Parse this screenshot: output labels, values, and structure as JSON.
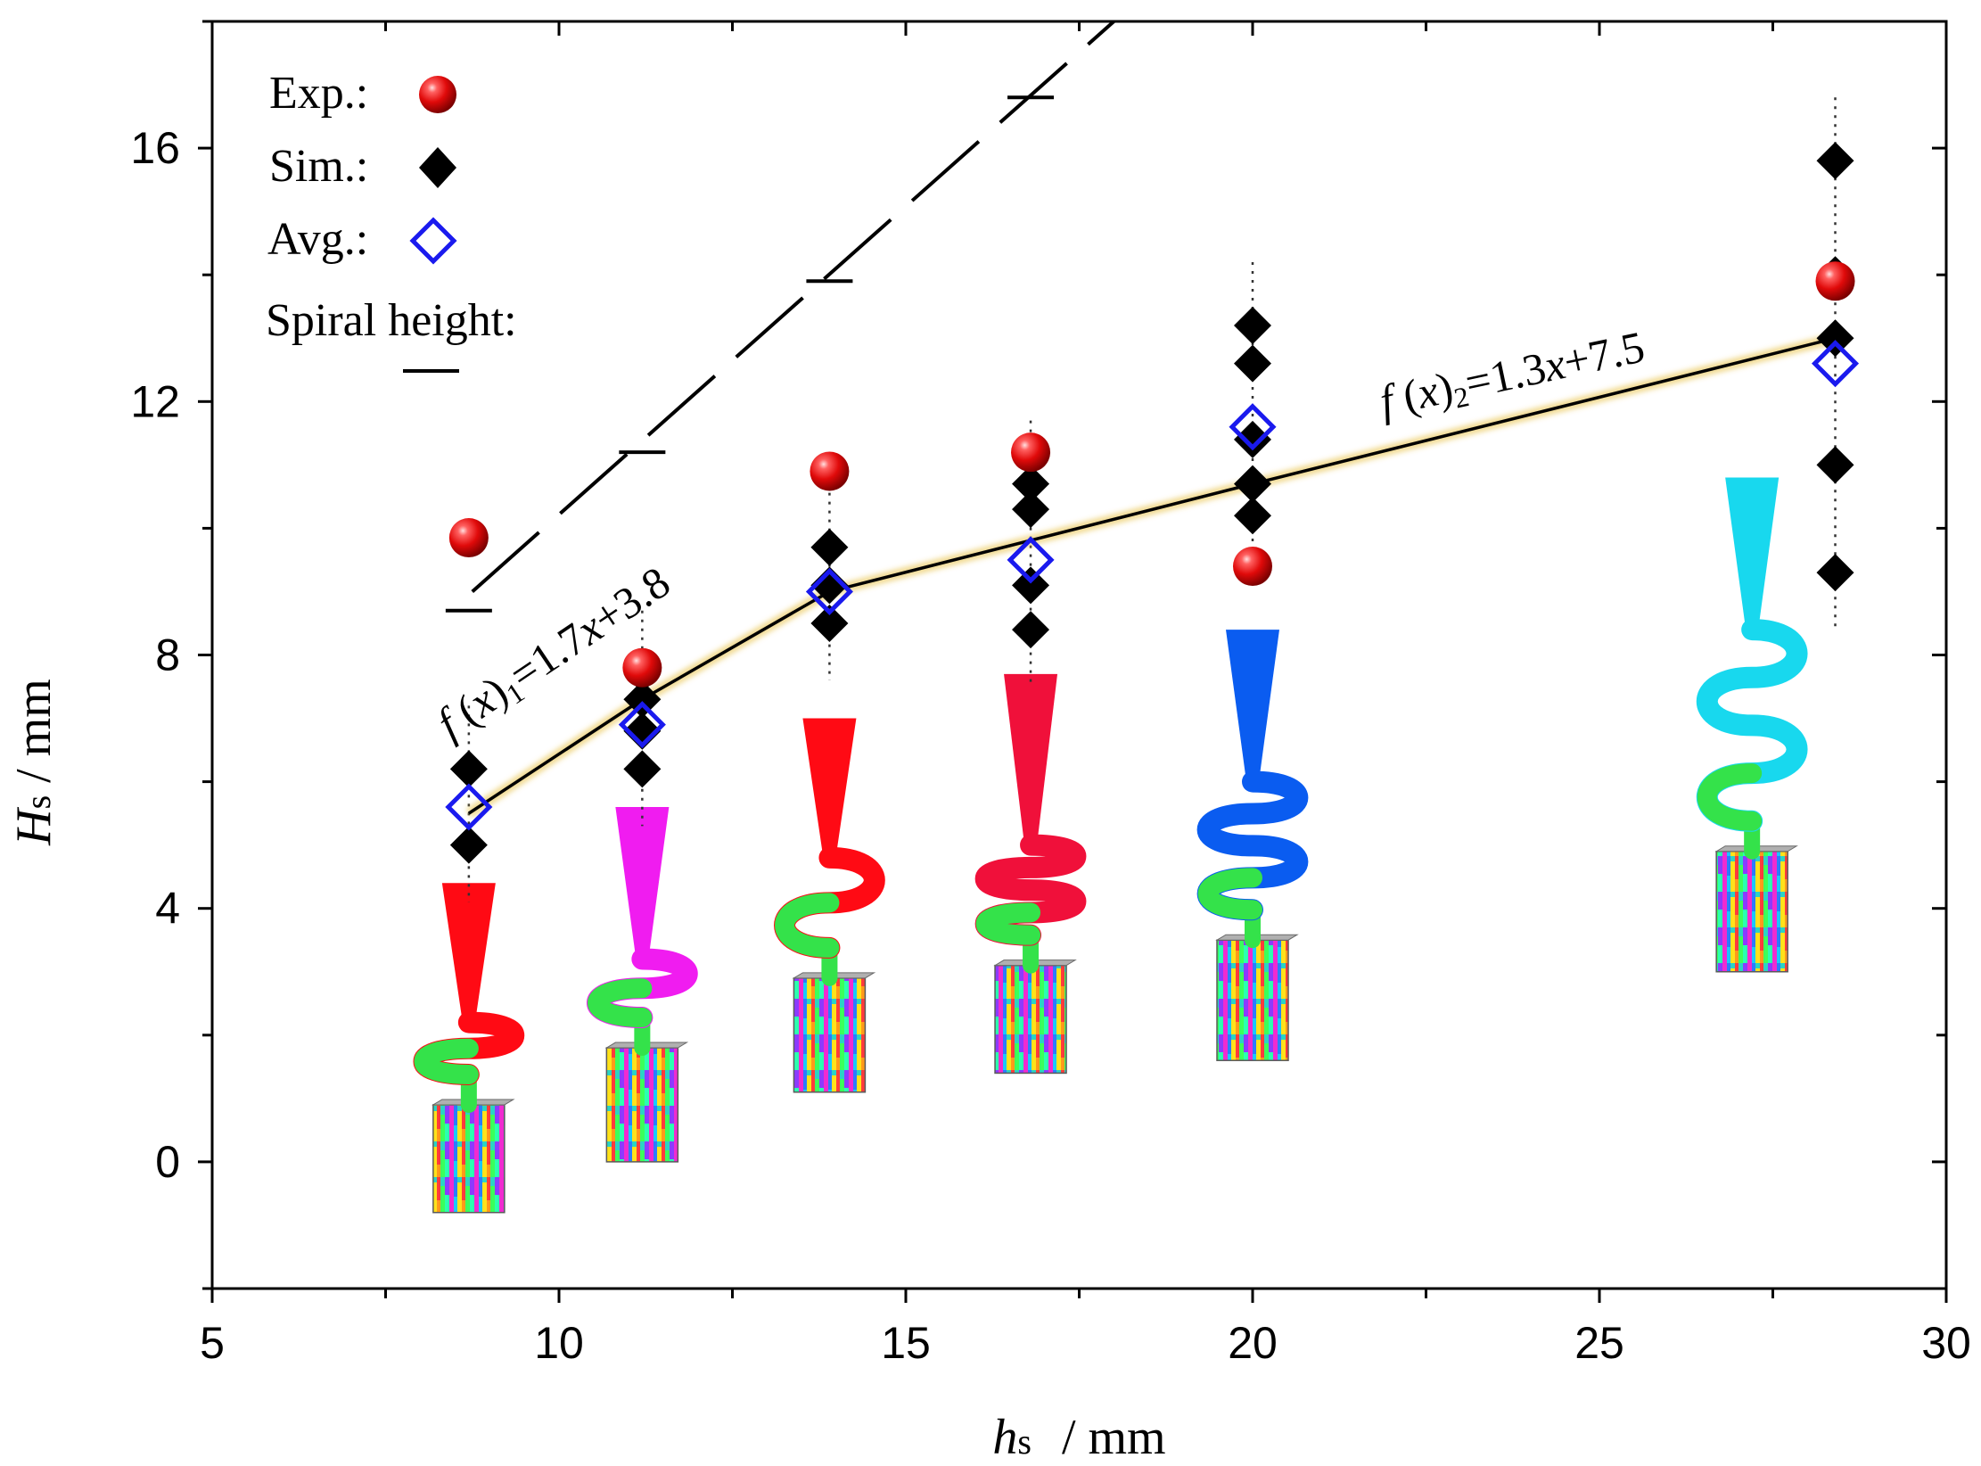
{
  "chart_data": {
    "type": "scatter",
    "xlabel": {
      "var": "h",
      "sub": "s",
      "unit": "/ mm"
    },
    "ylabel": {
      "var": "H",
      "sub": "s",
      "unit": "/ mm"
    },
    "xlim": [
      5,
      30
    ],
    "ylim": [
      -2,
      18
    ],
    "x_ticks": [
      5,
      10,
      15,
      20,
      25,
      30
    ],
    "y_ticks": [
      0,
      4,
      8,
      12,
      16
    ],
    "grid": false,
    "legend_position": "top-left",
    "legend": {
      "exp_label": "Exp.:",
      "sim_label": "Sim.:",
      "avg_label": "Avg.:",
      "spiral_label": "Spiral height:"
    },
    "series": [
      {
        "name": "Exp.",
        "marker": "red-sphere",
        "color": "#e01010",
        "points": [
          [
            8.7,
            9.85
          ],
          [
            11.2,
            7.8
          ],
          [
            13.9,
            10.9
          ],
          [
            16.8,
            11.2
          ],
          [
            20.0,
            9.4
          ],
          [
            28.4,
            13.9
          ]
        ]
      },
      {
        "name": "Sim.",
        "marker": "black-diamond",
        "color": "#000000",
        "points": [
          [
            8.7,
            6.2
          ],
          [
            8.7,
            5.0
          ],
          [
            11.2,
            7.7
          ],
          [
            11.2,
            7.3
          ],
          [
            11.2,
            6.8
          ],
          [
            11.2,
            6.2
          ],
          [
            13.9,
            9.7
          ],
          [
            13.9,
            9.1
          ],
          [
            13.9,
            8.5
          ],
          [
            16.8,
            10.7
          ],
          [
            16.8,
            10.3
          ],
          [
            16.8,
            9.1
          ],
          [
            16.8,
            8.4
          ],
          [
            20.0,
            13.2
          ],
          [
            20.0,
            12.6
          ],
          [
            20.0,
            11.4
          ],
          [
            20.0,
            10.7
          ],
          [
            20.0,
            10.2
          ],
          [
            28.4,
            15.8
          ],
          [
            28.4,
            14.0
          ],
          [
            28.4,
            13.0
          ],
          [
            28.4,
            11.0
          ],
          [
            28.4,
            9.3
          ]
        ]
      },
      {
        "name": "Avg.",
        "marker": "blue-open-diamond",
        "color": "#1a1aee",
        "points": [
          [
            8.7,
            5.6
          ],
          [
            11.2,
            6.9
          ],
          [
            13.9,
            9.0
          ],
          [
            16.8,
            9.5
          ],
          [
            20.0,
            11.6
          ],
          [
            28.4,
            12.6
          ]
        ]
      },
      {
        "name": "Spiral height",
        "marker": "dash",
        "color": "#000000",
        "points": [
          [
            8.7,
            8.7
          ],
          [
            11.2,
            11.2
          ],
          [
            13.9,
            13.9
          ],
          [
            16.8,
            16.8
          ]
        ]
      }
    ],
    "fit_line": {
      "color": "#000000",
      "glow_color": "#e8c040",
      "points": [
        [
          8.7,
          5.5
        ],
        [
          11.2,
          7.3
        ],
        [
          13.9,
          9.0
        ],
        [
          20.0,
          10.7
        ],
        [
          28.4,
          13.0
        ]
      ]
    },
    "annotations": [
      {
        "f": "f",
        "x": "x",
        "sub": "1",
        "rest": "=1.7",
        "xvar": "x",
        "tail": "+3.8"
      },
      {
        "f": "f",
        "x": "x",
        "sub": "2",
        "rest": "=1.3",
        "xvar": "x",
        "tail": "+7.5"
      }
    ],
    "colors": {
      "red": "#ff0a14",
      "magenta": "#f01cf0",
      "crimson": "#f0103a",
      "blue": "#0a5cf0",
      "cyan": "#18d8ee",
      "spiral_lower_blue": "#1ea0f0",
      "spiral_lower_green": "#34e24a"
    }
  }
}
